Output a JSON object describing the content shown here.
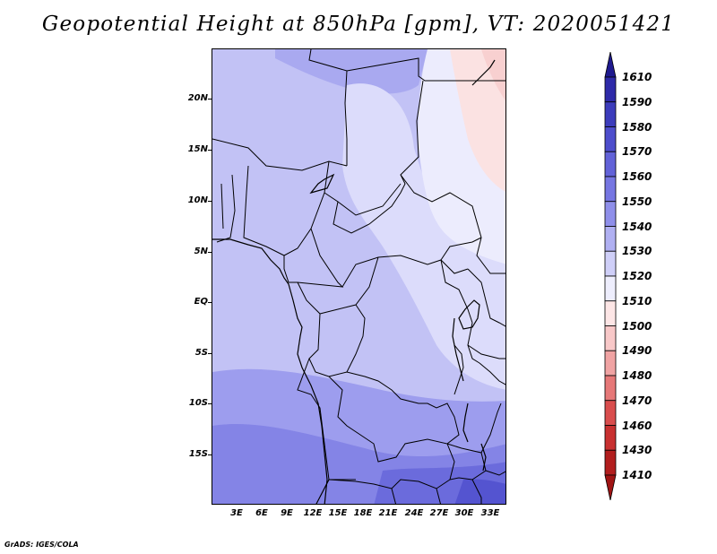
{
  "title": "Geopotential Height at 850hPa [gpm], VT: 2020051421",
  "credit": "GrADS: IGES/COLA",
  "map": {
    "region": "Central Africa",
    "latitude_labels": [
      "20N",
      "15N",
      "10N",
      "5N",
      "EQ",
      "5S",
      "10S",
      "15S"
    ],
    "longitude_labels": [
      "3E",
      "6E",
      "9E",
      "12E",
      "15E",
      "18E",
      "21E",
      "24E",
      "27E",
      "30E",
      "33E"
    ],
    "lat_range": [
      -20.5,
      24.5
    ],
    "lon_range": [
      0,
      35
    ]
  },
  "colorbar": {
    "labels": [
      "1610",
      "1590",
      "1580",
      "1570",
      "1560",
      "1550",
      "1540",
      "1530",
      "1520",
      "1510",
      "1500",
      "1490",
      "1480",
      "1470",
      "1460",
      "1430",
      "1410"
    ],
    "colors": [
      "#1f1a8f",
      "#2e2aa8",
      "#3c3cbc",
      "#4d4dcc",
      "#6262d8",
      "#7676e2",
      "#8f8fea",
      "#b0b0f2",
      "#cfcff8",
      "#eeeefd",
      "#fde6e6",
      "#f8c8c8",
      "#f0a3a3",
      "#e67878",
      "#d94d4d",
      "#c83030",
      "#b21e1e",
      "#a01414"
    ]
  }
}
